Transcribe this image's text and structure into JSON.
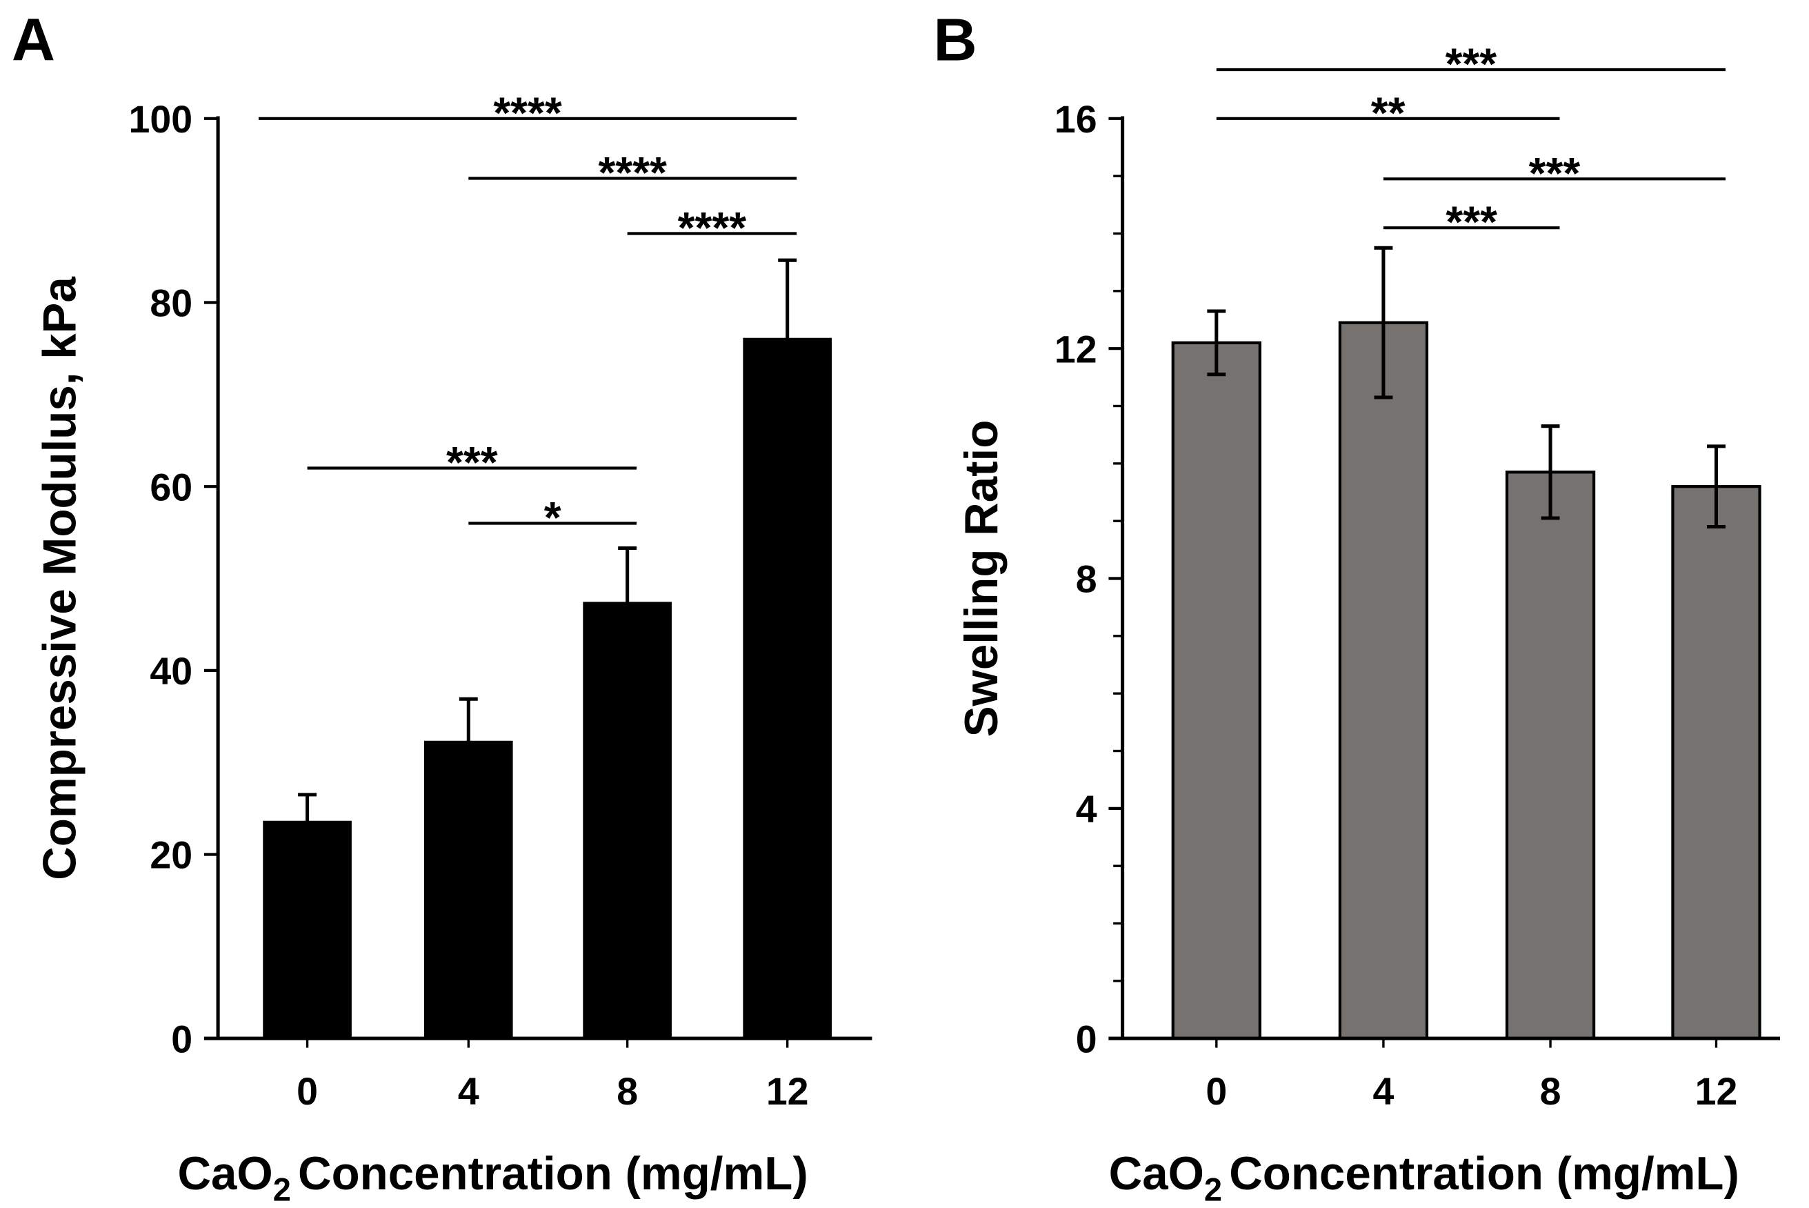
{
  "chart_data": [
    {
      "type": "bar",
      "panel_label": "A",
      "categories": [
        "0",
        "4",
        "8",
        "12"
      ],
      "values": [
        23.5,
        32.2,
        47.3,
        76.0
      ],
      "errors": [
        3.0,
        4.7,
        6.0,
        8.6
      ],
      "xlabel_main": "CaO",
      "xlabel_sub": "2",
      "xlabel_rest": "Concentration (mg/mL)",
      "ylabel": "Compressive Modulus, kPa",
      "ylim": [
        0,
        100
      ],
      "yticks": [
        "0",
        "20",
        "40",
        "60",
        "80",
        "100"
      ],
      "bar_color": "#000000",
      "significance": [
        {
          "from": 0,
          "to": 3,
          "label": "****",
          "level": 100
        },
        {
          "from": 1,
          "to": 3,
          "label": "****",
          "level": 93.5
        },
        {
          "from": 2,
          "to": 3,
          "label": "****",
          "level": 87.5
        },
        {
          "from": 0,
          "to": 2,
          "label": "***",
          "level": 62
        },
        {
          "from": 1,
          "to": 2,
          "label": "*",
          "level": 56
        }
      ]
    },
    {
      "type": "bar",
      "panel_label": "B",
      "categories": [
        "0",
        "4",
        "8",
        "12"
      ],
      "values": [
        12.1,
        12.45,
        9.85,
        9.6
      ],
      "errors": [
        0.55,
        1.3,
        0.8,
        0.7
      ],
      "xlabel_main": "CaO",
      "xlabel_sub": "2",
      "xlabel_rest": "Concentration (mg/mL)",
      "ylabel": "Swelling Ratio",
      "ylim": [
        0,
        16
      ],
      "yticks": [
        "0",
        "4",
        "8",
        "12",
        "16"
      ],
      "bar_color": "#767270",
      "significance": [
        {
          "from": 0,
          "to": 3,
          "label": "***",
          "level": 16.85
        },
        {
          "from": 0,
          "to": 2,
          "label": "**",
          "level": 16.0
        },
        {
          "from": 1,
          "to": 3,
          "label": "***",
          "level": 14.95
        },
        {
          "from": 1,
          "to": 2,
          "label": "***",
          "level": 14.1
        }
      ]
    }
  ]
}
